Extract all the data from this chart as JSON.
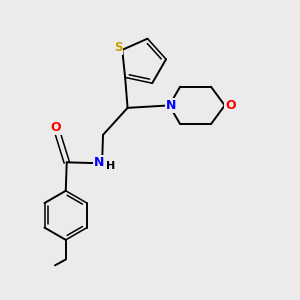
{
  "background_color": "#ebebeb",
  "bond_color": "#000000",
  "atom_colors": {
    "S": "#c8a000",
    "N": "#0000ff",
    "O": "#ff0000",
    "H": "#000000",
    "C": "#000000"
  },
  "figsize": [
    3.0,
    3.0
  ],
  "dpi": 100
}
